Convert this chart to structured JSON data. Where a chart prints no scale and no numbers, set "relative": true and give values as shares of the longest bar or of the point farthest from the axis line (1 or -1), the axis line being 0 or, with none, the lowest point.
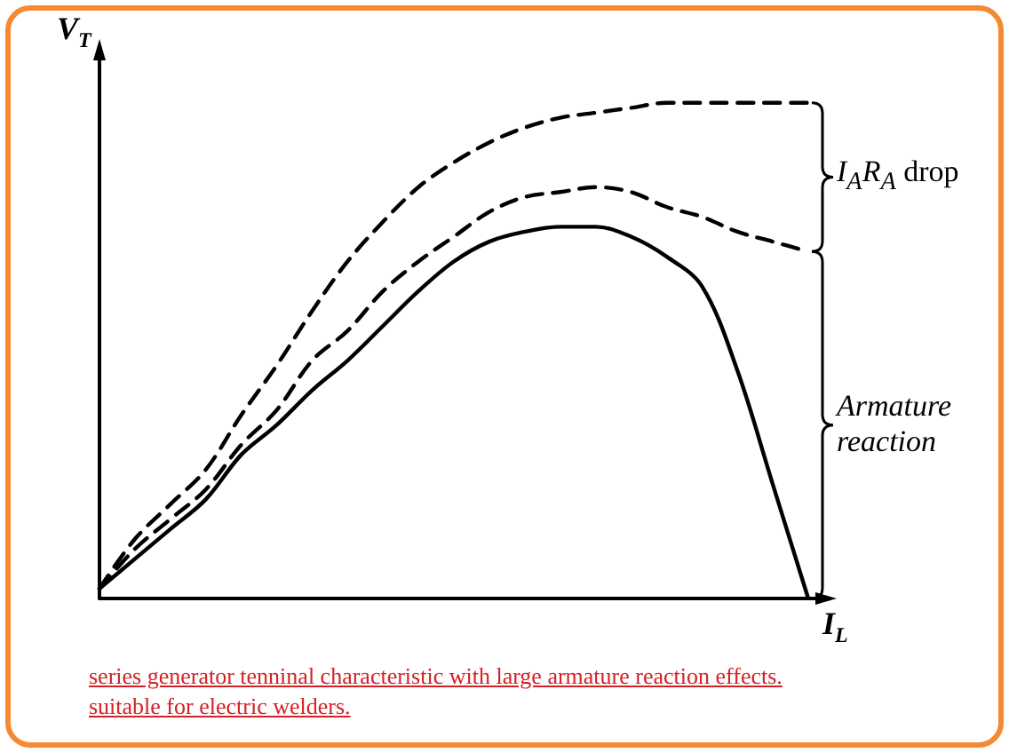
{
  "chart_data": {
    "type": "line",
    "relative": true,
    "xlabel": "I$_{L}$",
    "ylabel": "V$_{T}$",
    "categories": [
      null,
      null,
      null,
      null,
      null,
      null,
      null,
      null,
      null,
      null,
      null,
      null,
      null,
      null,
      null,
      null,
      null,
      null,
      null,
      null,
      null
    ],
    "series": [
      {
        "color": "#000000",
        "line_style": "dashed",
        "values": [
          0.02,
          0.12,
          0.19,
          0.26,
          0.37,
          0.47,
          0.58,
          0.68,
          0.76,
          0.83,
          0.88,
          0.92,
          0.95,
          0.97,
          0.98,
          0.99,
          1.0,
          1.0,
          1.0,
          1.0,
          1.0
        ]
      },
      {
        "color": "#000000",
        "line_style": "dashed",
        "values": [
          0.02,
          0.1,
          0.16,
          0.22,
          0.31,
          0.38,
          0.48,
          0.54,
          0.62,
          0.68,
          0.73,
          0.78,
          0.81,
          0.82,
          0.83,
          0.82,
          0.79,
          0.77,
          0.74,
          0.72,
          0.7
        ]
      },
      {
        "color": "#000000",
        "line_style": "solid",
        "values": [
          0.02,
          0.08,
          0.14,
          0.2,
          0.29,
          0.35,
          0.42,
          0.48,
          0.55,
          0.62,
          0.68,
          0.72,
          0.74,
          0.75,
          0.75,
          0.73,
          0.69,
          0.63,
          0.46,
          0.23,
          0
        ]
      }
    ],
    "marker": "none",
    "grid": false,
    "annotations": [
      "I$_{A}$R$_{A}$ drop",
      "Armature reaction",
      "series generator tenninal characteristic with large armature reaction effects. suitable for electric welders."
    ]
  }
}
